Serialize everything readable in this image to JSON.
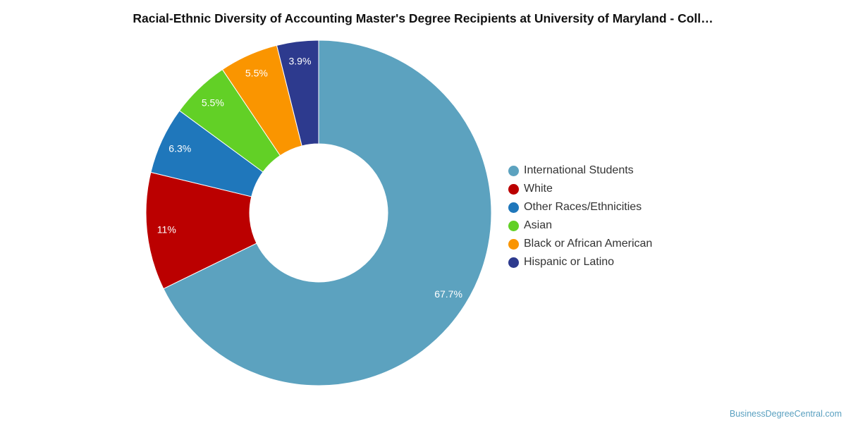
{
  "chart_data": {
    "type": "pie",
    "donut": true,
    "title": "Racial-Ethnic Diversity of Accounting Master's Degree Recipients at University of Maryland - Coll…",
    "slices": [
      {
        "name": "International Students",
        "value": 67.7,
        "label": "67.7%",
        "color": "#5ca2bf"
      },
      {
        "name": "White",
        "value": 11.0,
        "label": "11%",
        "color": "#bb0000"
      },
      {
        "name": "Other Races/Ethnicities",
        "value": 6.3,
        "label": "6.3%",
        "color": "#1f77bb"
      },
      {
        "name": "Asian",
        "value": 5.5,
        "label": "5.5%",
        "color": "#62d026"
      },
      {
        "name": "Black or African American",
        "value": 5.5,
        "label": "5.5%",
        "color": "#fa9500"
      },
      {
        "name": "Hispanic or Latino",
        "value": 3.9,
        "label": "3.9%",
        "color": "#2d3a8e"
      }
    ],
    "legend_position": "right"
  },
  "watermark": "BusinessDegreeCentral.com"
}
